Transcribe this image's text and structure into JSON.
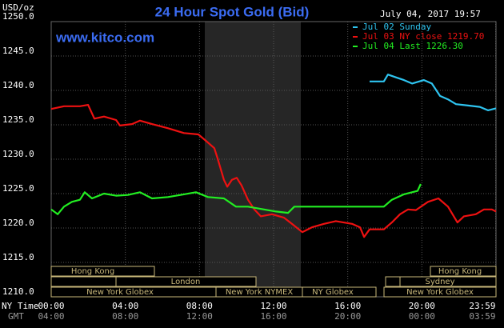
{
  "chart_data": {
    "type": "line",
    "title": "24 Hour Spot Gold (Bid)",
    "website": "www.kitco.com",
    "timestamp": "July 04, 2017 19:57",
    "y_label": "USD/oz",
    "x_label": "NY Time",
    "x2_label": "GMT",
    "xlim": [
      0,
      24
    ],
    "ylim": [
      1210,
      1250
    ],
    "grid": true,
    "yticks": [
      {
        "value": 1250,
        "label": "1250.0"
      },
      {
        "value": 1245,
        "label": "1245.0"
      },
      {
        "value": 1240,
        "label": "1240.0"
      },
      {
        "value": 1235,
        "label": "1235.0"
      },
      {
        "value": 1230,
        "label": "1230.0"
      },
      {
        "value": 1225,
        "label": "1225.0"
      },
      {
        "value": 1220,
        "label": "1220.0"
      },
      {
        "value": 1215,
        "label": "1215.0"
      },
      {
        "value": 1210,
        "label": "1210.0"
      }
    ],
    "xticks": [
      {
        "value": 0,
        "label": "00:00"
      },
      {
        "value": 4,
        "label": "04:00"
      },
      {
        "value": 8,
        "label": "08:00"
      },
      {
        "value": 12,
        "label": "12:00"
      },
      {
        "value": 16,
        "label": "16:00"
      },
      {
        "value": 20,
        "label": "20:00"
      },
      {
        "value": 23.98,
        "label": "23:59"
      }
    ],
    "x2tick_labels": [
      "04:00",
      "08:00",
      "12:00",
      "16:00",
      "20:00",
      "00:00",
      "03:59"
    ],
    "markets": [
      "Hong Kong",
      "London",
      "New York Globex",
      "New York NYMEX",
      "NY Globex",
      "Hong Kong",
      "Sydney",
      "New York Globex"
    ],
    "series": [
      {
        "name": "Jul 02 Sunday",
        "color": "#2ec4f0",
        "x": [
          17.18,
          17.95,
          18.17,
          18.6,
          19.03,
          19.47,
          20.11,
          20.54,
          20.98,
          21.41,
          21.84,
          22.49,
          23.13,
          23.57,
          24
        ],
        "values": [
          1241.3,
          1241.3,
          1242.3,
          1241.9,
          1241.5,
          1241.0,
          1241.5,
          1241.0,
          1239.2,
          1238.7,
          1238.0,
          1237.8,
          1237.6,
          1237.1,
          1237.4
        ]
      },
      {
        "name": "Jul 03 NY close 1219.70",
        "color": "#ee1111",
        "x": [
          0,
          0.69,
          1.55,
          1.99,
          2.33,
          2.85,
          3.5,
          3.71,
          4.36,
          4.79,
          5.44,
          6.3,
          7.16,
          7.94,
          8.29,
          8.8,
          8.98,
          9.32,
          9.5,
          9.75,
          10.01,
          10.27,
          10.62,
          10.96,
          11.31,
          11.91,
          12.56,
          12.99,
          13.55,
          14.07,
          14.72,
          15.36,
          16.23,
          16.66,
          16.88,
          17.18,
          17.95,
          18.38,
          18.82,
          19.25,
          19.68,
          20.33,
          20.89,
          21.41,
          21.92,
          22.27,
          22.91,
          23.35,
          23.78,
          24
        ],
        "values": [
          1237.3,
          1237.7,
          1237.7,
          1237.9,
          1235.9,
          1236.2,
          1235.7,
          1234.9,
          1235.1,
          1235.6,
          1235.1,
          1234.5,
          1233.8,
          1233.6,
          1232.8,
          1231.6,
          1230.1,
          1227.0,
          1226.0,
          1227.0,
          1227.3,
          1226.2,
          1224.1,
          1222.7,
          1221.7,
          1222.0,
          1221.5,
          1220.6,
          1219.4,
          1220.1,
          1220.6,
          1221.0,
          1220.6,
          1220.1,
          1218.7,
          1219.8,
          1219.8,
          1220.8,
          1222.0,
          1222.7,
          1222.6,
          1223.8,
          1224.3,
          1223.1,
          1220.8,
          1221.7,
          1222.0,
          1222.7,
          1222.7,
          1222.4
        ]
      },
      {
        "name": "Jul 04 Last 1226.30",
        "color": "#22ee22",
        "x": [
          0,
          0.35,
          0.69,
          1.12,
          1.55,
          1.81,
          2.2,
          2.85,
          3.5,
          4.14,
          4.79,
          5.44,
          6.3,
          7.16,
          7.81,
          8.46,
          9.32,
          9.97,
          10.62,
          11.48,
          12.13,
          12.78,
          13.12,
          17.95,
          18.38,
          19.03,
          19.47,
          19.77,
          19.94
        ],
        "values": [
          1222.7,
          1222.0,
          1223.1,
          1223.8,
          1224.1,
          1225.2,
          1224.3,
          1225.0,
          1224.7,
          1224.8,
          1225.2,
          1224.3,
          1224.5,
          1224.9,
          1225.2,
          1224.5,
          1224.3,
          1223.1,
          1223.1,
          1222.7,
          1222.4,
          1222.2,
          1223.1,
          1223.1,
          1224.1,
          1224.9,
          1225.2,
          1225.4,
          1226.4
        ]
      }
    ]
  }
}
